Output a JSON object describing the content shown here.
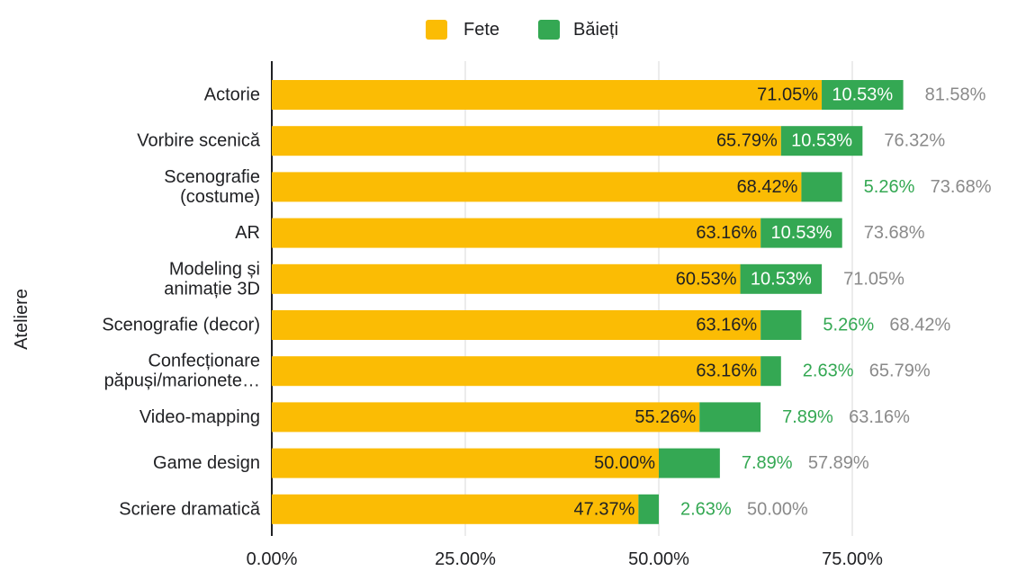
{
  "chart_data": {
    "type": "bar",
    "orientation": "horizontal",
    "stacked": true,
    "ylabel": "Ateliere",
    "xlabel": "",
    "legend_position": "top",
    "xlim": [
      0,
      100
    ],
    "x_ticks": [
      0,
      25,
      50,
      75
    ],
    "x_tick_labels": [
      "0.00%",
      "25.00%",
      "50.00%",
      "75.00%"
    ],
    "grid": true,
    "categories": [
      [
        "Actorie"
      ],
      [
        "Vorbire scenică"
      ],
      [
        "Scenografie",
        "(costume)"
      ],
      [
        "AR"
      ],
      [
        "Modeling și",
        "animație 3D"
      ],
      [
        "Scenografie (decor)"
      ],
      [
        "Confecționare",
        "păpuși/marionete…"
      ],
      [
        "Video-mapping"
      ],
      [
        "Game design"
      ],
      [
        "Scriere dramatică"
      ]
    ],
    "series": [
      {
        "name": "Fete",
        "color": "#FBBC04",
        "values": [
          71.05,
          65.79,
          68.42,
          63.16,
          60.53,
          63.16,
          63.16,
          55.26,
          50.0,
          47.37
        ],
        "labels": [
          "71.05%",
          "65.79%",
          "68.42%",
          "63.16%",
          "60.53%",
          "63.16%",
          "63.16%",
          "55.26%",
          "50.00%",
          "47.37%"
        ]
      },
      {
        "name": "Băieți",
        "color": "#34A853",
        "values": [
          10.53,
          10.53,
          5.26,
          10.53,
          10.53,
          5.26,
          2.63,
          7.89,
          7.89,
          2.63
        ],
        "labels": [
          "10.53%",
          "10.53%",
          "5.26%",
          "10.53%",
          "10.53%",
          "5.26%",
          "2.63%",
          "7.89%",
          "7.89%",
          "2.63%"
        ]
      }
    ],
    "totals": [
      81.58,
      76.32,
      73.68,
      73.68,
      71.05,
      68.42,
      65.79,
      63.16,
      57.89,
      50.0
    ],
    "total_labels": [
      "81.58%",
      "76.32%",
      "73.68%",
      "73.68%",
      "71.05%",
      "68.42%",
      "65.79%",
      "63.16%",
      "57.89%",
      "50.00%"
    ],
    "colors": {
      "total_label": "#8a8a8a",
      "inside_label_fete": "#202124",
      "inside_label_baieti": "#ffffff",
      "grid": "#d9d9d9",
      "axis": "#202124",
      "text": "#202124"
    }
  }
}
